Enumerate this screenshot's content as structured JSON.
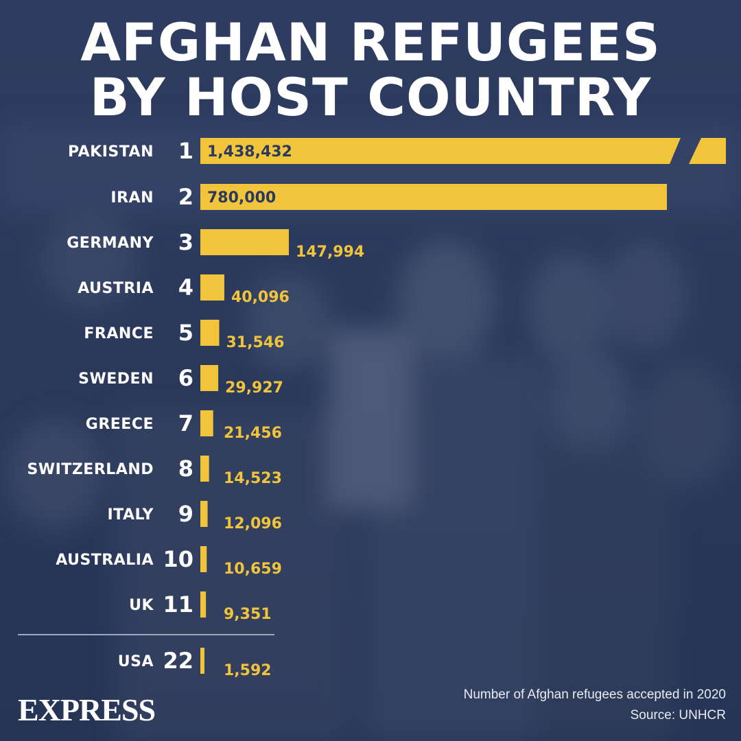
{
  "title_line1": "AFGHAN REFUGEES",
  "title_line2": "BY HOST COUNTRY",
  "footnote": "Number of Afghan refugees accepted in 2020",
  "source": "Source: UNHCR",
  "logo_text": "EXPRESS",
  "colors": {
    "background": "#2b3a5c",
    "bar": "#f2c43c",
    "text": "#ffffff"
  },
  "chart_data": {
    "type": "bar",
    "orientation": "horizontal",
    "title": "AFGHAN REFUGEES BY HOST COUNTRY",
    "subtitle": "Number of Afghan refugees accepted in 2020",
    "rows": [
      {
        "rank": "1",
        "country": "PAKISTAN",
        "value": 1438432,
        "label": "1,438,432",
        "axis_break": true
      },
      {
        "rank": "2",
        "country": "IRAN",
        "value": 780000,
        "label": "780,000"
      },
      {
        "rank": "3",
        "country": "GERMANY",
        "value": 147994,
        "label": "147,994"
      },
      {
        "rank": "4",
        "country": "AUSTRIA",
        "value": 40096,
        "label": "40,096"
      },
      {
        "rank": "5",
        "country": "FRANCE",
        "value": 31546,
        "label": "31,546"
      },
      {
        "rank": "6",
        "country": "SWEDEN",
        "value": 29927,
        "label": "29,927"
      },
      {
        "rank": "7",
        "country": "GREECE",
        "value": 21456,
        "label": "21,456"
      },
      {
        "rank": "8",
        "country": "SWITZERLAND",
        "value": 14523,
        "label": "14,523"
      },
      {
        "rank": "9",
        "country": "ITALY",
        "value": 12096,
        "label": "12,096"
      },
      {
        "rank": "10",
        "country": "AUSTRALIA",
        "value": 10659,
        "label": "10,659"
      },
      {
        "rank": "11",
        "country": "UK",
        "value": 9351,
        "label": "9,351"
      },
      {
        "rank": "22",
        "country": "USA",
        "value": 1592,
        "label": "1,592"
      }
    ]
  }
}
